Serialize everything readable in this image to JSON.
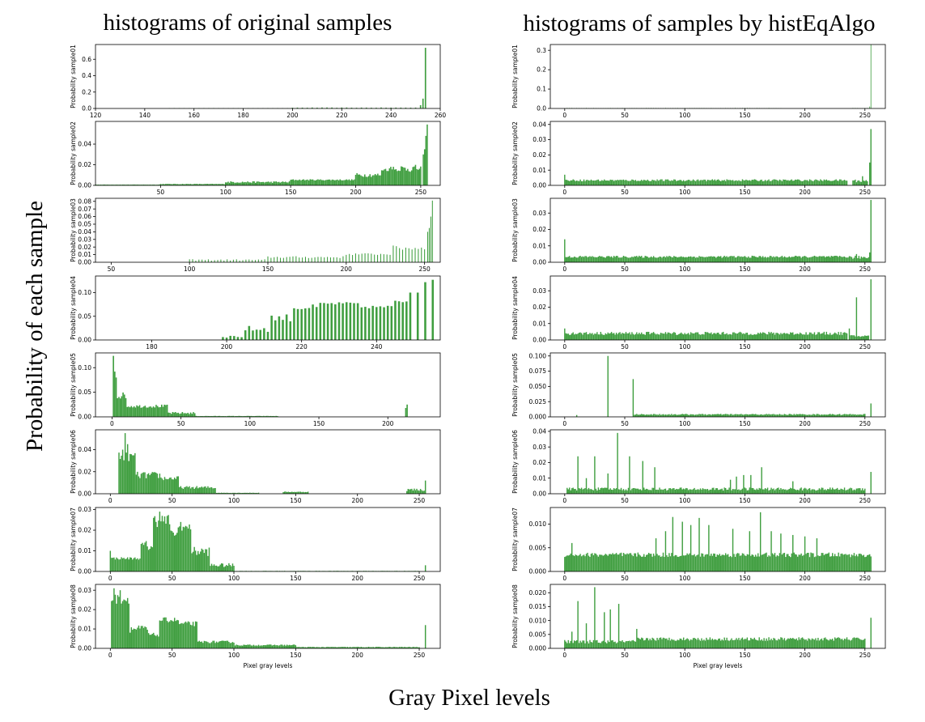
{
  "figure": {
    "left_title": "histograms of original samples",
    "right_title": "histograms of samples by histEqAlgo",
    "y_title": "Probability of each sample",
    "x_title": "Gray Pixel levels",
    "bar_color": "#3f9e3f"
  },
  "chart_data": [
    {
      "type": "bar",
      "column": "left",
      "ylabel": "Probability sample01",
      "xlabel": "",
      "xlim": [
        120,
        260
      ],
      "ylim": [
        0,
        0.78
      ],
      "xticks": [
        120,
        140,
        160,
        180,
        200,
        220,
        240,
        260
      ],
      "yticks": [
        0.0,
        0.2,
        0.4,
        0.6
      ],
      "ytick_labels": [
        "0.0",
        "0.2",
        "0.4",
        "0.6"
      ],
      "bar_step": 2,
      "peaks": [
        [
          254,
          0.74
        ],
        [
          253,
          0.12
        ],
        [
          252,
          0.04
        ]
      ],
      "bands": [
        [
          150,
          200,
          0.003,
          0.005
        ],
        [
          200,
          252,
          0.006,
          0.012
        ]
      ]
    },
    {
      "type": "bar",
      "column": "left",
      "ylabel": "Probability sample02",
      "xlabel": "",
      "xlim": [
        0,
        265
      ],
      "ylim": [
        0,
        0.062
      ],
      "xticks": [
        50,
        100,
        150,
        200,
        250
      ],
      "yticks": [
        0.0,
        0.02,
        0.04
      ],
      "ytick_labels": [
        "0.00",
        "0.02",
        "0.04"
      ],
      "bar_step": 1,
      "peaks": [
        [
          255,
          0.059
        ],
        [
          254,
          0.048
        ],
        [
          253,
          0.035
        ],
        [
          252,
          0.03
        ],
        [
          229,
          0.018
        ],
        [
          227,
          0.018
        ]
      ],
      "bands": [
        [
          0,
          50,
          0.0005,
          0.0008
        ],
        [
          50,
          100,
          0.0008,
          0.0015
        ],
        [
          100,
          150,
          0.0015,
          0.004
        ],
        [
          150,
          200,
          0.004,
          0.006
        ],
        [
          200,
          220,
          0.006,
          0.012
        ],
        [
          220,
          235,
          0.012,
          0.017
        ],
        [
          235,
          250,
          0.009,
          0.02
        ]
      ]
    },
    {
      "type": "bar",
      "column": "left",
      "ylabel": "Probability sample03",
      "xlabel": "",
      "xlim": [
        40,
        260
      ],
      "ylim": [
        0,
        0.084
      ],
      "xticks": [
        50,
        100,
        150,
        200,
        250
      ],
      "yticks": [
        0.0,
        0.01,
        0.02,
        0.03,
        0.04,
        0.05,
        0.06,
        0.07,
        0.08
      ],
      "ytick_labels": [
        "0.00",
        "0.01",
        "0.02",
        "0.03",
        "0.04",
        "0.05",
        "0.06",
        "0.07",
        "0.08"
      ],
      "bar_step": 2,
      "peaks": [
        [
          255,
          0.081
        ],
        [
          254,
          0.06
        ],
        [
          253,
          0.045
        ],
        [
          252,
          0.04
        ]
      ],
      "bands": [
        [
          100,
          150,
          0.001,
          0.004
        ],
        [
          150,
          200,
          0.004,
          0.008
        ],
        [
          200,
          230,
          0.008,
          0.012
        ],
        [
          230,
          250,
          0.012,
          0.022
        ]
      ]
    },
    {
      "type": "bar",
      "column": "left",
      "ylabel": "Probability sample04",
      "xlabel": "",
      "xlim": [
        165,
        257
      ],
      "ylim": [
        0,
        0.135
      ],
      "xticks": [
        180,
        200,
        220,
        240
      ],
      "yticks": [
        0.0,
        0.05,
        0.1
      ],
      "ytick_labels": [
        "0.00",
        "0.05",
        "0.10"
      ],
      "bar_step": 1.2,
      "peaks": [
        [
          255,
          0.127
        ],
        [
          253,
          0.122
        ],
        [
          251,
          0.1
        ],
        [
          249,
          0.1
        ]
      ],
      "bands": [
        [
          199,
          205,
          0.002,
          0.01
        ],
        [
          205,
          212,
          0.01,
          0.03
        ],
        [
          212,
          218,
          0.03,
          0.055
        ],
        [
          218,
          225,
          0.055,
          0.075
        ],
        [
          225,
          235,
          0.07,
          0.08
        ],
        [
          235,
          245,
          0.063,
          0.073
        ],
        [
          245,
          249,
          0.07,
          0.09
        ]
      ]
    },
    {
      "type": "bar",
      "column": "left",
      "ylabel": "Probability sample05",
      "xlabel": "",
      "xlim": [
        -12,
        238
      ],
      "ylim": [
        0,
        0.13
      ],
      "xticks": [
        0,
        50,
        100,
        150,
        200
      ],
      "yticks": [
        0.0,
        0.05,
        0.1
      ],
      "ytick_labels": [
        "0.00",
        "0.05",
        "0.10"
      ],
      "bar_step": 1,
      "peaks": [
        [
          1,
          0.124
        ],
        [
          2,
          0.092
        ],
        [
          3,
          0.08
        ],
        [
          214,
          0.025
        ],
        [
          213,
          0.018
        ]
      ],
      "bands": [
        [
          4,
          10,
          0.03,
          0.05
        ],
        [
          10,
          40,
          0.015,
          0.025
        ],
        [
          40,
          60,
          0.003,
          0.01
        ],
        [
          60,
          120,
          0.001,
          0.002
        ]
      ]
    },
    {
      "type": "bar",
      "column": "left",
      "ylabel": "Probability sample06",
      "xlabel": "",
      "xlim": [
        -12,
        267
      ],
      "ylim": [
        0,
        0.058
      ],
      "xticks": [
        0,
        50,
        100,
        150,
        200,
        250
      ],
      "yticks": [
        0.0,
        0.02,
        0.04
      ],
      "ytick_labels": [
        "0.00",
        "0.02",
        "0.04"
      ],
      "bar_step": 1,
      "peaks": [
        [
          12,
          0.055
        ],
        [
          14,
          0.045
        ],
        [
          10,
          0.04
        ],
        [
          255,
          0.012
        ]
      ],
      "bands": [
        [
          7,
          20,
          0.025,
          0.038
        ],
        [
          20,
          40,
          0.01,
          0.02
        ],
        [
          40,
          55,
          0.01,
          0.016
        ],
        [
          55,
          85,
          0.003,
          0.007
        ],
        [
          85,
          120,
          0.0005,
          0.001
        ],
        [
          140,
          160,
          0.001,
          0.002
        ],
        [
          240,
          254,
          0.001,
          0.005
        ]
      ]
    },
    {
      "type": "bar",
      "column": "left",
      "ylabel": "Probability sample07",
      "xlabel": "",
      "xlim": [
        -12,
        267
      ],
      "ylim": [
        0,
        0.031
      ],
      "xticks": [
        0,
        50,
        100,
        150,
        200,
        250
      ],
      "yticks": [
        0.0,
        0.01,
        0.02,
        0.03
      ],
      "ytick_labels": [
        "0.00",
        "0.01",
        "0.02",
        "0.03"
      ],
      "bar_step": 1,
      "peaks": [
        [
          0,
          0.01
        ],
        [
          40,
          0.029
        ],
        [
          57,
          0.024
        ],
        [
          255,
          0.003
        ]
      ],
      "bands": [
        [
          1,
          25,
          0.005,
          0.007
        ],
        [
          25,
          35,
          0.007,
          0.015
        ],
        [
          35,
          48,
          0.018,
          0.028
        ],
        [
          48,
          55,
          0.015,
          0.02
        ],
        [
          55,
          65,
          0.018,
          0.023
        ],
        [
          65,
          80,
          0.005,
          0.012
        ],
        [
          80,
          100,
          0.001,
          0.004
        ],
        [
          100,
          250,
          0.0001,
          0.0003
        ]
      ]
    },
    {
      "type": "bar",
      "column": "left",
      "ylabel": "Probability sample08",
      "xlabel": "Pixel gray levels",
      "xlim": [
        -12,
        267
      ],
      "ylim": [
        0,
        0.033
      ],
      "xticks": [
        0,
        50,
        100,
        150,
        200,
        250
      ],
      "yticks": [
        0.0,
        0.01,
        0.02,
        0.03
      ],
      "ytick_labels": [
        "0.00",
        "0.01",
        "0.02",
        "0.03"
      ],
      "bar_step": 1,
      "peaks": [
        [
          3,
          0.031
        ],
        [
          8,
          0.03
        ],
        [
          255,
          0.012
        ]
      ],
      "bands": [
        [
          1,
          15,
          0.02,
          0.028
        ],
        [
          15,
          30,
          0.006,
          0.012
        ],
        [
          30,
          40,
          0.005,
          0.008
        ],
        [
          40,
          55,
          0.012,
          0.016
        ],
        [
          55,
          70,
          0.01,
          0.014
        ],
        [
          70,
          100,
          0.002,
          0.004
        ],
        [
          100,
          150,
          0.001,
          0.002
        ],
        [
          150,
          250,
          0.0003,
          0.0008
        ]
      ]
    },
    {
      "type": "bar",
      "column": "right",
      "ylabel": "Probability sample01",
      "xlabel": "",
      "xlim": [
        -12,
        267
      ],
      "ylim": [
        0,
        0.33
      ],
      "xticks": [
        0,
        50,
        100,
        150,
        200,
        250
      ],
      "yticks": [
        0.0,
        0.1,
        0.2,
        0.3
      ],
      "ytick_labels": [
        "0.0",
        "0.1",
        "0.2",
        "0.3"
      ],
      "bar_step": 1.5,
      "peaks": [
        [
          255,
          0.35
        ],
        [
          254,
          0.01
        ]
      ],
      "bands": [
        [
          0,
          180,
          0.001,
          0.003
        ],
        [
          240,
          252,
          0.001,
          0.003
        ]
      ]
    },
    {
      "type": "bar",
      "column": "right",
      "ylabel": "Probability sample02",
      "xlabel": "",
      "xlim": [
        -12,
        267
      ],
      "ylim": [
        0,
        0.042
      ],
      "xticks": [
        0,
        50,
        100,
        150,
        200,
        250
      ],
      "yticks": [
        0.0,
        0.01,
        0.02,
        0.03,
        0.04
      ],
      "ytick_labels": [
        "0.00",
        "0.01",
        "0.02",
        "0.03",
        "0.04"
      ],
      "bar_step": 1,
      "peaks": [
        [
          0,
          0.007
        ],
        [
          255,
          0.037
        ],
        [
          254,
          0.015
        ],
        [
          248,
          0.006
        ]
      ],
      "bands": [
        [
          1,
          235,
          0.002,
          0.004
        ],
        [
          240,
          252,
          0.001,
          0.004
        ]
      ]
    },
    {
      "type": "bar",
      "column": "right",
      "ylabel": "Probability sample03",
      "xlabel": "",
      "xlim": [
        -12,
        267
      ],
      "ylim": [
        0,
        0.039
      ],
      "xticks": [
        0,
        50,
        100,
        150,
        200,
        250
      ],
      "yticks": [
        0.0,
        0.01,
        0.02,
        0.03
      ],
      "ytick_labels": [
        "0.00",
        "0.01",
        "0.02",
        "0.03"
      ],
      "bar_step": 1,
      "peaks": [
        [
          0,
          0.014
        ],
        [
          255,
          0.038
        ],
        [
          254,
          0.006
        ],
        [
          243,
          0.005
        ]
      ],
      "bands": [
        [
          1,
          235,
          0.002,
          0.004
        ],
        [
          235,
          253,
          0.001,
          0.004
        ]
      ]
    },
    {
      "type": "bar",
      "column": "right",
      "ylabel": "Probability sample04",
      "xlabel": "",
      "xlim": [
        -12,
        267
      ],
      "ylim": [
        0,
        0.039
      ],
      "xticks": [
        0,
        50,
        100,
        150,
        200,
        250
      ],
      "yticks": [
        0.0,
        0.01,
        0.02,
        0.03
      ],
      "ytick_labels": [
        "0.00",
        "0.01",
        "0.02",
        "0.03"
      ],
      "bar_step": 1,
      "peaks": [
        [
          0,
          0.007
        ],
        [
          255,
          0.037
        ],
        [
          243,
          0.026
        ],
        [
          237,
          0.007
        ]
      ],
      "bands": [
        [
          1,
          235,
          0.002,
          0.005
        ],
        [
          238,
          253,
          0.001,
          0.003
        ]
      ]
    },
    {
      "type": "bar",
      "column": "right",
      "ylabel": "Probability sample05",
      "xlabel": "",
      "xlim": [
        -12,
        267
      ],
      "ylim": [
        0,
        0.105
      ],
      "xticks": [
        0,
        50,
        100,
        150,
        200,
        250
      ],
      "yticks": [
        0.0,
        0.025,
        0.05,
        0.075,
        0.1
      ],
      "ytick_labels": [
        "0.000",
        "0.025",
        "0.050",
        "0.075",
        "0.100"
      ],
      "bar_step": 1,
      "peaks": [
        [
          36,
          0.1
        ],
        [
          57,
          0.062
        ],
        [
          255,
          0.022
        ],
        [
          10,
          0.003
        ]
      ],
      "bands": [
        [
          58,
          250,
          0.002,
          0.005
        ]
      ]
    },
    {
      "type": "bar",
      "column": "right",
      "ylabel": "Probability sample06",
      "xlabel": "",
      "xlim": [
        -12,
        267
      ],
      "ylim": [
        0,
        0.041
      ],
      "xticks": [
        0,
        50,
        100,
        150,
        200,
        250
      ],
      "yticks": [
        0.0,
        0.01,
        0.02,
        0.03,
        0.04
      ],
      "ytick_labels": [
        "0.00",
        "0.01",
        "0.02",
        "0.03",
        "0.04"
      ],
      "bar_step": 1,
      "peaks": [
        [
          44,
          0.039
        ],
        [
          11,
          0.024
        ],
        [
          25,
          0.024
        ],
        [
          54,
          0.024
        ],
        [
          65,
          0.021
        ],
        [
          75,
          0.017
        ],
        [
          164,
          0.017
        ],
        [
          255,
          0.014
        ],
        [
          36,
          0.013
        ],
        [
          18,
          0.01
        ],
        [
          149,
          0.012
        ],
        [
          143,
          0.011
        ],
        [
          155,
          0.012
        ],
        [
          138,
          0.009
        ],
        [
          190,
          0.008
        ]
      ],
      "bands": [
        [
          2,
          250,
          0.001,
          0.004
        ]
      ]
    },
    {
      "type": "bar",
      "column": "right",
      "ylabel": "Probability sample07",
      "xlabel": "",
      "xlim": [
        -12,
        267
      ],
      "ylim": [
        0,
        0.0135
      ],
      "xticks": [
        0,
        50,
        100,
        150,
        200,
        250
      ],
      "yticks": [
        0.0,
        0.005,
        0.01
      ],
      "ytick_labels": [
        "0.000",
        "0.005",
        "0.010"
      ],
      "bar_step": 1,
      "peaks": [
        [
          163,
          0.0125
        ],
        [
          90,
          0.0115
        ],
        [
          112,
          0.0113
        ],
        [
          98,
          0.0105
        ],
        [
          105,
          0.0098
        ],
        [
          120,
          0.0098
        ],
        [
          140,
          0.009
        ],
        [
          154,
          0.0085
        ],
        [
          172,
          0.0085
        ],
        [
          180,
          0.008
        ],
        [
          190,
          0.0077
        ],
        [
          200,
          0.0074
        ],
        [
          210,
          0.007
        ],
        [
          84,
          0.0085
        ],
        [
          76,
          0.007
        ],
        [
          6,
          0.006
        ]
      ],
      "bands": [
        [
          0,
          255,
          0.0025,
          0.004
        ]
      ]
    },
    {
      "type": "bar",
      "column": "right",
      "ylabel": "Probability sample08",
      "xlabel": "Pixel gray levels",
      "xlim": [
        -12,
        267
      ],
      "ylim": [
        0,
        0.023
      ],
      "xticks": [
        0,
        50,
        100,
        150,
        200,
        250
      ],
      "yticks": [
        0.0,
        0.005,
        0.01,
        0.015,
        0.02
      ],
      "ytick_labels": [
        "0.000",
        "0.005",
        "0.010",
        "0.015",
        "0.020"
      ],
      "bar_step": 1,
      "peaks": [
        [
          25,
          0.022
        ],
        [
          11,
          0.017
        ],
        [
          45,
          0.016
        ],
        [
          38,
          0.014
        ],
        [
          33,
          0.013
        ],
        [
          18,
          0.009
        ],
        [
          6,
          0.006
        ],
        [
          60,
          0.007
        ],
        [
          255,
          0.011
        ]
      ],
      "bands": [
        [
          0,
          60,
          0.001,
          0.003
        ],
        [
          60,
          250,
          0.002,
          0.004
        ]
      ]
    }
  ]
}
